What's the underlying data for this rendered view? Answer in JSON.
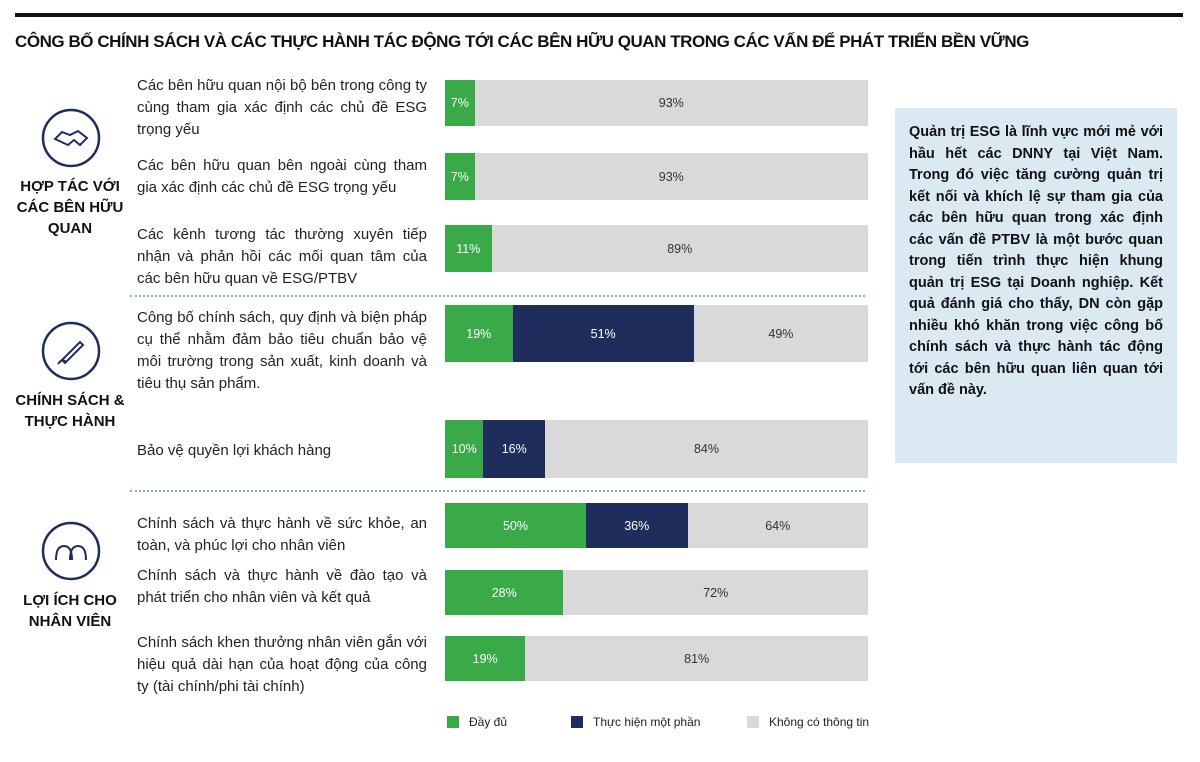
{
  "chart_data": {
    "type": "bar",
    "orientation": "horizontal",
    "stacked": true,
    "title": "CÔNG BỐ CHÍNH SÁCH VÀ CÁC THỰC HÀNH TÁC ĐỘNG TỚI CÁC BÊN HỮU QUAN TRONG CÁC VẤN ĐỂ PHÁT TRIỂN BỀN VỮNG",
    "groups": [
      "HỢP TÁC VỚI CÁC BÊN HỮU QUAN",
      "CHÍNH SÁCH & THỰC HÀNH",
      "LỢI ÍCH CHO NHÂN VIÊN"
    ],
    "categories": [
      "Các bên hữu quan nội bộ bên trong công ty cùng tham gia xác định các chủ đề ESG trọng yếu",
      "Các bên hữu quan bên ngoài cùng tham gia xác định các chủ đề ESG trọng yếu",
      "Các kênh tương tác thường xuyên tiếp nhận và phản hồi các mối quan tâm của các bên hữu quan về ESG/PTBV",
      "Công bố chính sách, quy định và biện pháp cụ thể nhằm đảm bảo tiêu chuẩn bảo vệ môi trường trong sản xuất, kinh doanh và tiêu thụ sản phẩm.",
      "Bảo vệ quyền lợi khách hàng",
      "Chính sách và thực hành về sức khỏe, an toàn, và phúc lợi cho nhân viên",
      "Chính sách và thực hành về đào tạo và phát triển cho nhân viên và kết quả",
      "Chính sách khen thưởng nhân viên gắn với hiệu quả dài hạn của hoạt động của công ty (tài chính/phi tài chính)"
    ],
    "series": [
      {
        "name": "Đầy đủ",
        "color": "#3aaa49",
        "values": [
          7,
          7,
          11,
          19,
          10,
          50,
          28,
          19
        ],
        "value_labels": [
          "7%",
          "7%",
          "11%",
          "19%",
          "10%",
          "50%",
          "28%",
          "19%"
        ]
      },
      {
        "name": "Thực hiện một phần",
        "color": "#1f2d5c",
        "values": [
          null,
          null,
          null,
          51,
          16,
          36,
          null,
          null
        ],
        "value_labels": [
          null,
          null,
          null,
          "51%",
          "16%",
          "36%",
          null,
          null
        ]
      },
      {
        "name": "Không có thông tin",
        "color": "#d9d9d9",
        "values": [
          93,
          93,
          89,
          49,
          84,
          64,
          72,
          81
        ],
        "value_labels": [
          "93%",
          "93%",
          "89%",
          "49%",
          "84%",
          "64%",
          "72%",
          "81%"
        ]
      }
    ],
    "note": "Quản trị ESG là lĩnh vực mới mẻ với hầu hết các DNNY tại Việt Nam. Trong đó việc tăng cường quản trị kết nối và khích lệ sự tham gia của các bên hữu quan trong xác định các vấn đề PTBV là một bước quan trong tiến trình thực hiện khung quản trị ESG tại Doanh nghiệp. Kết quả đánh giá cho thấy, DN còn gặp nhiều khó khăn trong việc công bố chính sách và thực hành tác động tới các bên hữu quan liên quan tới vấn đề này."
  }
}
